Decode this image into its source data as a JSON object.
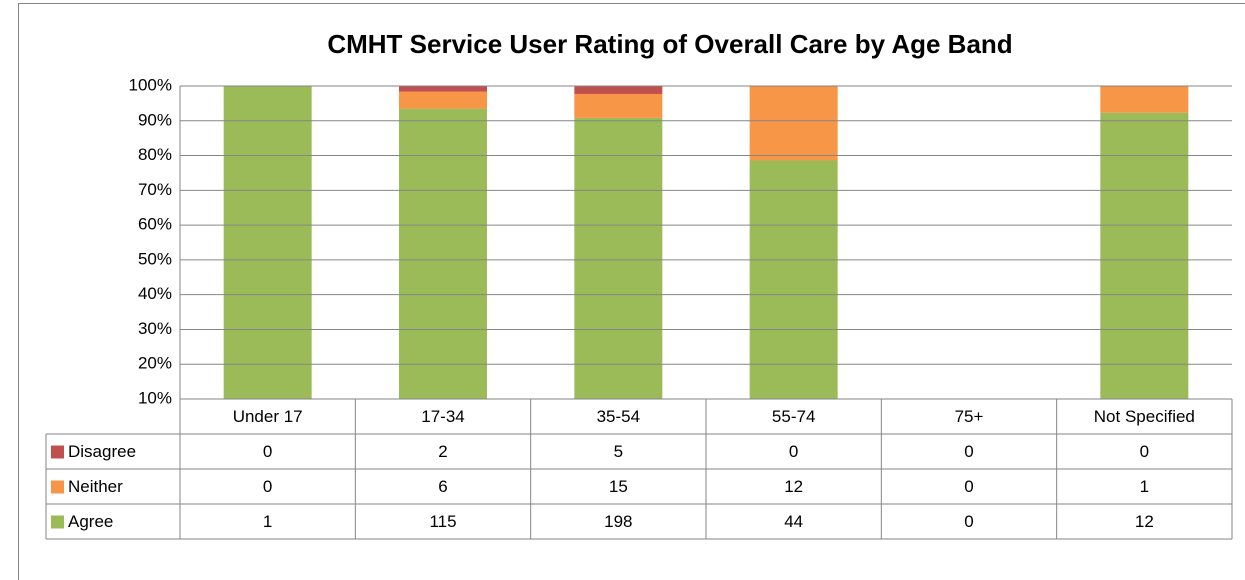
{
  "chart_data": {
    "type": "bar",
    "stacking": "percent",
    "title": "CMHT Service User Rating of Overall Care by Age Band",
    "categories": [
      "Under 17",
      "17-34",
      "35-54",
      "55-74",
      "75+",
      "Not Specified"
    ],
    "series": [
      {
        "name": "Disagree",
        "color": "#c0504d",
        "values": [
          0,
          2,
          5,
          0,
          0,
          0
        ]
      },
      {
        "name": "Neither",
        "color": "#f79646",
        "values": [
          0,
          6,
          15,
          12,
          0,
          1
        ]
      },
      {
        "name": "Agree",
        "color": "#9bbb59",
        "values": [
          1,
          115,
          198,
          44,
          0,
          12
        ]
      }
    ],
    "ylim": [
      10,
      100
    ],
    "yticks": [
      {
        "value": 10,
        "label": "10%"
      },
      {
        "value": 20,
        "label": "20%"
      },
      {
        "value": 30,
        "label": "30%"
      },
      {
        "value": 40,
        "label": "40%"
      },
      {
        "value": 50,
        "label": "50%"
      },
      {
        "value": 60,
        "label": "60%"
      },
      {
        "value": 70,
        "label": "70%"
      },
      {
        "value": 80,
        "label": "80%"
      },
      {
        "value": 90,
        "label": "90%"
      },
      {
        "value": 100,
        "label": "100%"
      }
    ],
    "grid": true
  }
}
